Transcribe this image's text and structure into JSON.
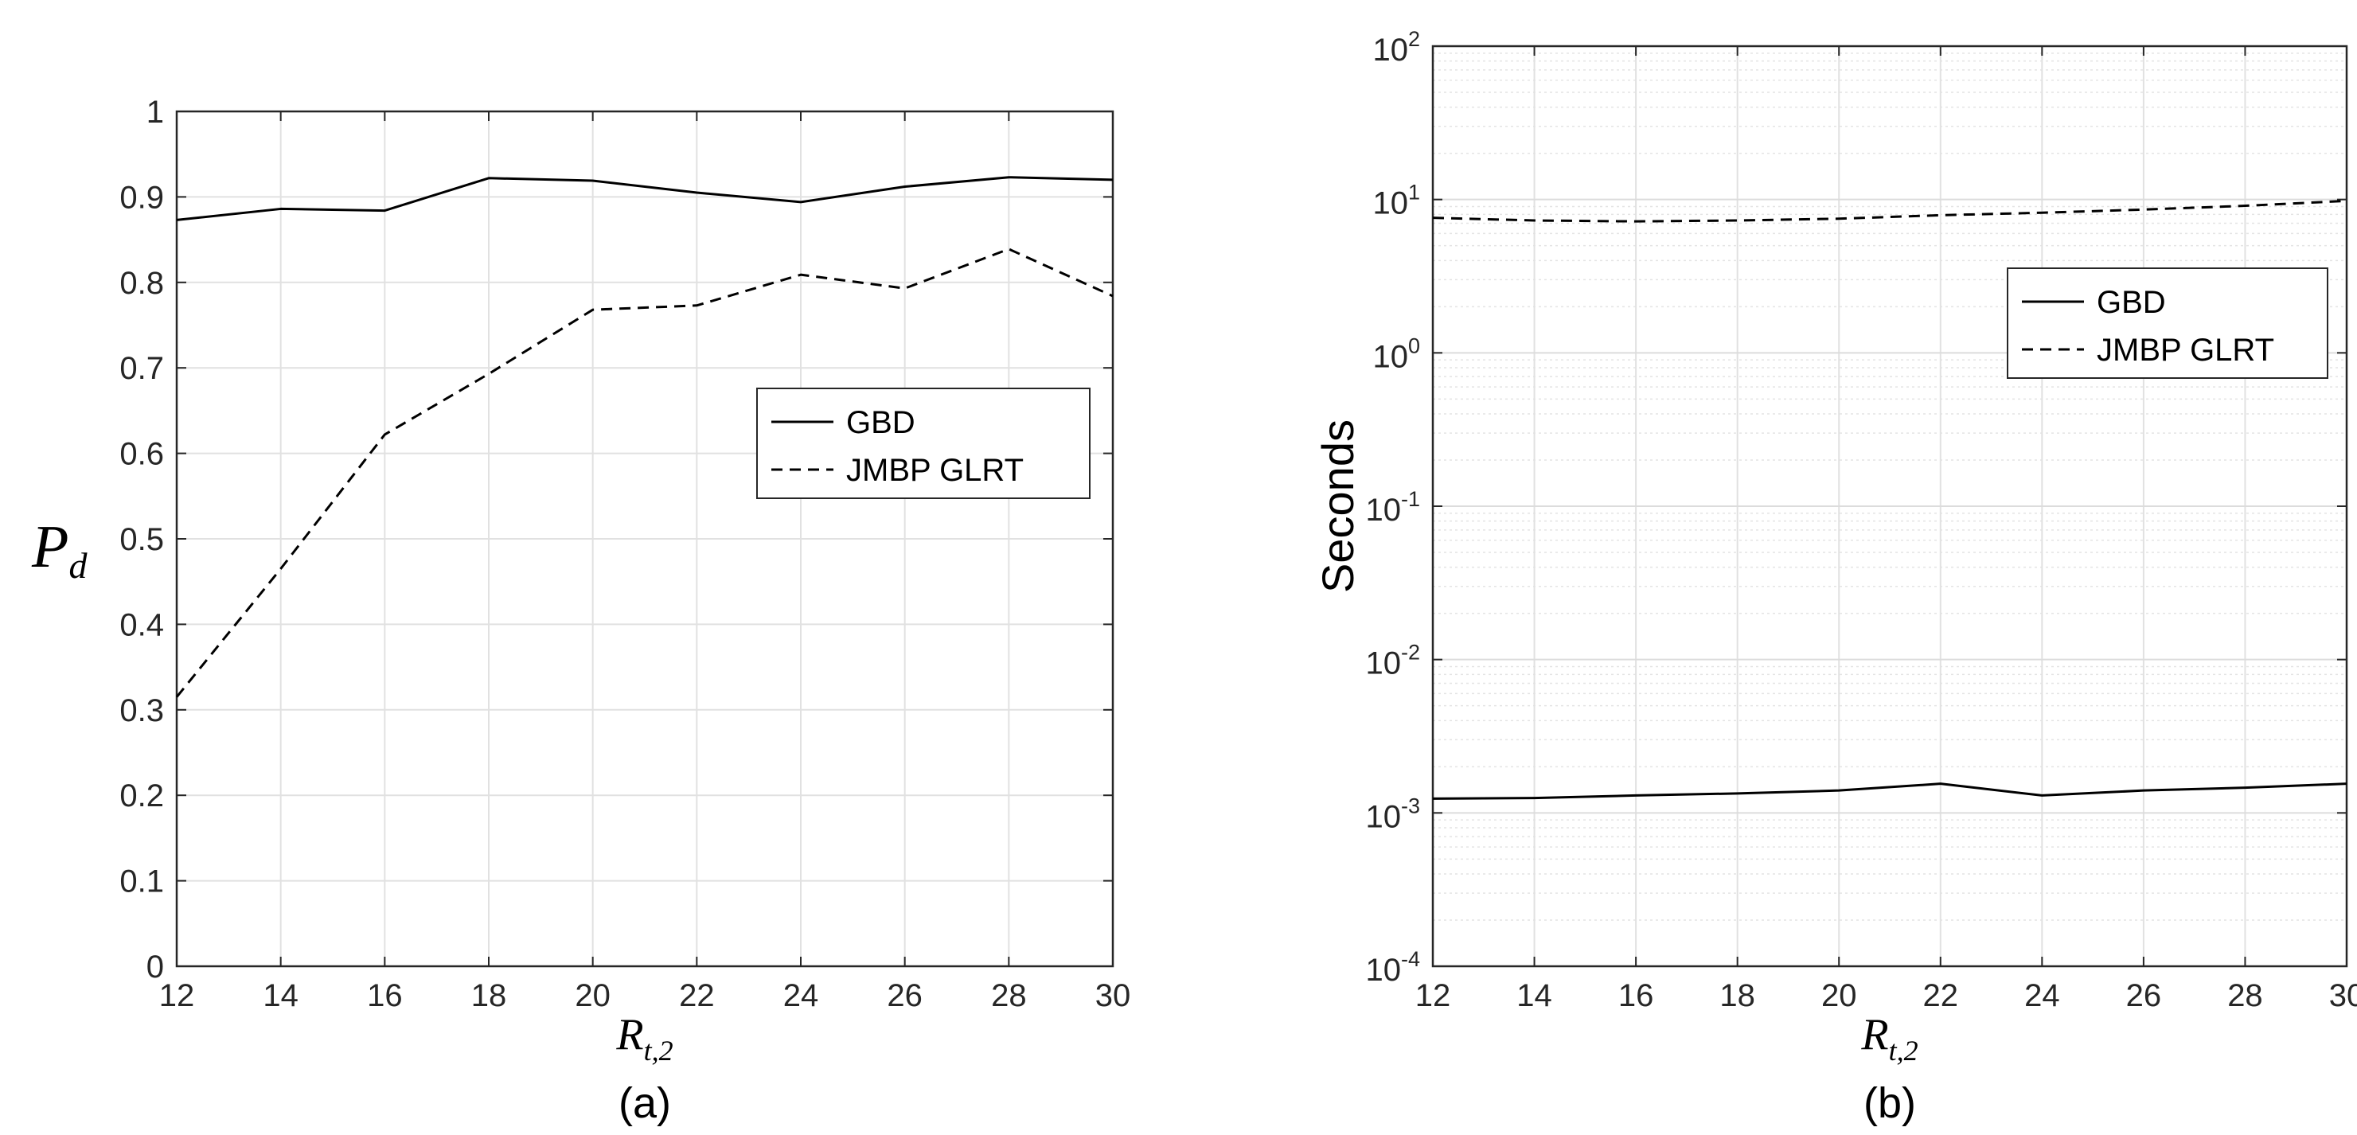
{
  "chart_data": [
    {
      "type": "line",
      "caption": "(a)",
      "xlabel": {
        "base": "R",
        "subscript": "t,2"
      },
      "ylabel": {
        "base": "P",
        "subscript": "d"
      },
      "xlim": [
        12,
        30
      ],
      "ylim": [
        0,
        1
      ],
      "xticks": [
        "12",
        "14",
        "16",
        "18",
        "20",
        "22",
        "24",
        "26",
        "28",
        "30"
      ],
      "yticks": [
        "0",
        "0.1",
        "0.2",
        "0.3",
        "0.4",
        "0.5",
        "0.6",
        "0.7",
        "0.8",
        "0.9",
        "1"
      ],
      "grid": true,
      "legend": "right",
      "series": [
        {
          "name": "GBD",
          "style": "solid",
          "x": [
            12,
            14,
            16,
            18,
            20,
            22,
            24,
            26,
            28,
            30
          ],
          "y": [
            0.873,
            0.886,
            0.884,
            0.922,
            0.919,
            0.905,
            0.894,
            0.912,
            0.923,
            0.92
          ]
        },
        {
          "name": "JMBP GLRT",
          "style": "dashed",
          "x": [
            12,
            14,
            16,
            18,
            20,
            22,
            24,
            26,
            28,
            30
          ],
          "y": [
            0.315,
            0.465,
            0.622,
            0.693,
            0.768,
            0.773,
            0.809,
            0.793,
            0.839,
            0.784
          ]
        }
      ]
    },
    {
      "type": "line",
      "caption": "(b)",
      "xlabel": {
        "base": "R",
        "subscript": "t,2"
      },
      "ylabel": {
        "text": "Seconds"
      },
      "xlim": [
        12,
        30
      ],
      "ylim": [
        0.0001,
        100
      ],
      "yscale": "log",
      "xticks": [
        "12",
        "14",
        "16",
        "18",
        "20",
        "22",
        "24",
        "26",
        "28",
        "30"
      ],
      "yticks": [
        {
          "base": "10",
          "exp": "-4"
        },
        {
          "base": "10",
          "exp": "-3"
        },
        {
          "base": "10",
          "exp": "-2"
        },
        {
          "base": "10",
          "exp": "-1"
        },
        {
          "base": "10",
          "exp": "0"
        },
        {
          "base": "10",
          "exp": "1"
        },
        {
          "base": "10",
          "exp": "2"
        }
      ],
      "grid": true,
      "minor_grid": true,
      "legend": "right",
      "series": [
        {
          "name": "GBD",
          "style": "solid",
          "x": [
            12,
            14,
            16,
            18,
            20,
            22,
            24,
            26,
            28,
            30
          ],
          "y": [
            0.00124,
            0.00125,
            0.0013,
            0.00134,
            0.0014,
            0.00155,
            0.0013,
            0.0014,
            0.00146,
            0.00155
          ]
        },
        {
          "name": "JMBP GLRT",
          "style": "dashed",
          "x": [
            12,
            14,
            16,
            18,
            20,
            22,
            24,
            26,
            28,
            30
          ],
          "y": [
            7.6,
            7.3,
            7.2,
            7.3,
            7.5,
            7.9,
            8.2,
            8.6,
            9.1,
            9.8
          ]
        }
      ]
    }
  ]
}
